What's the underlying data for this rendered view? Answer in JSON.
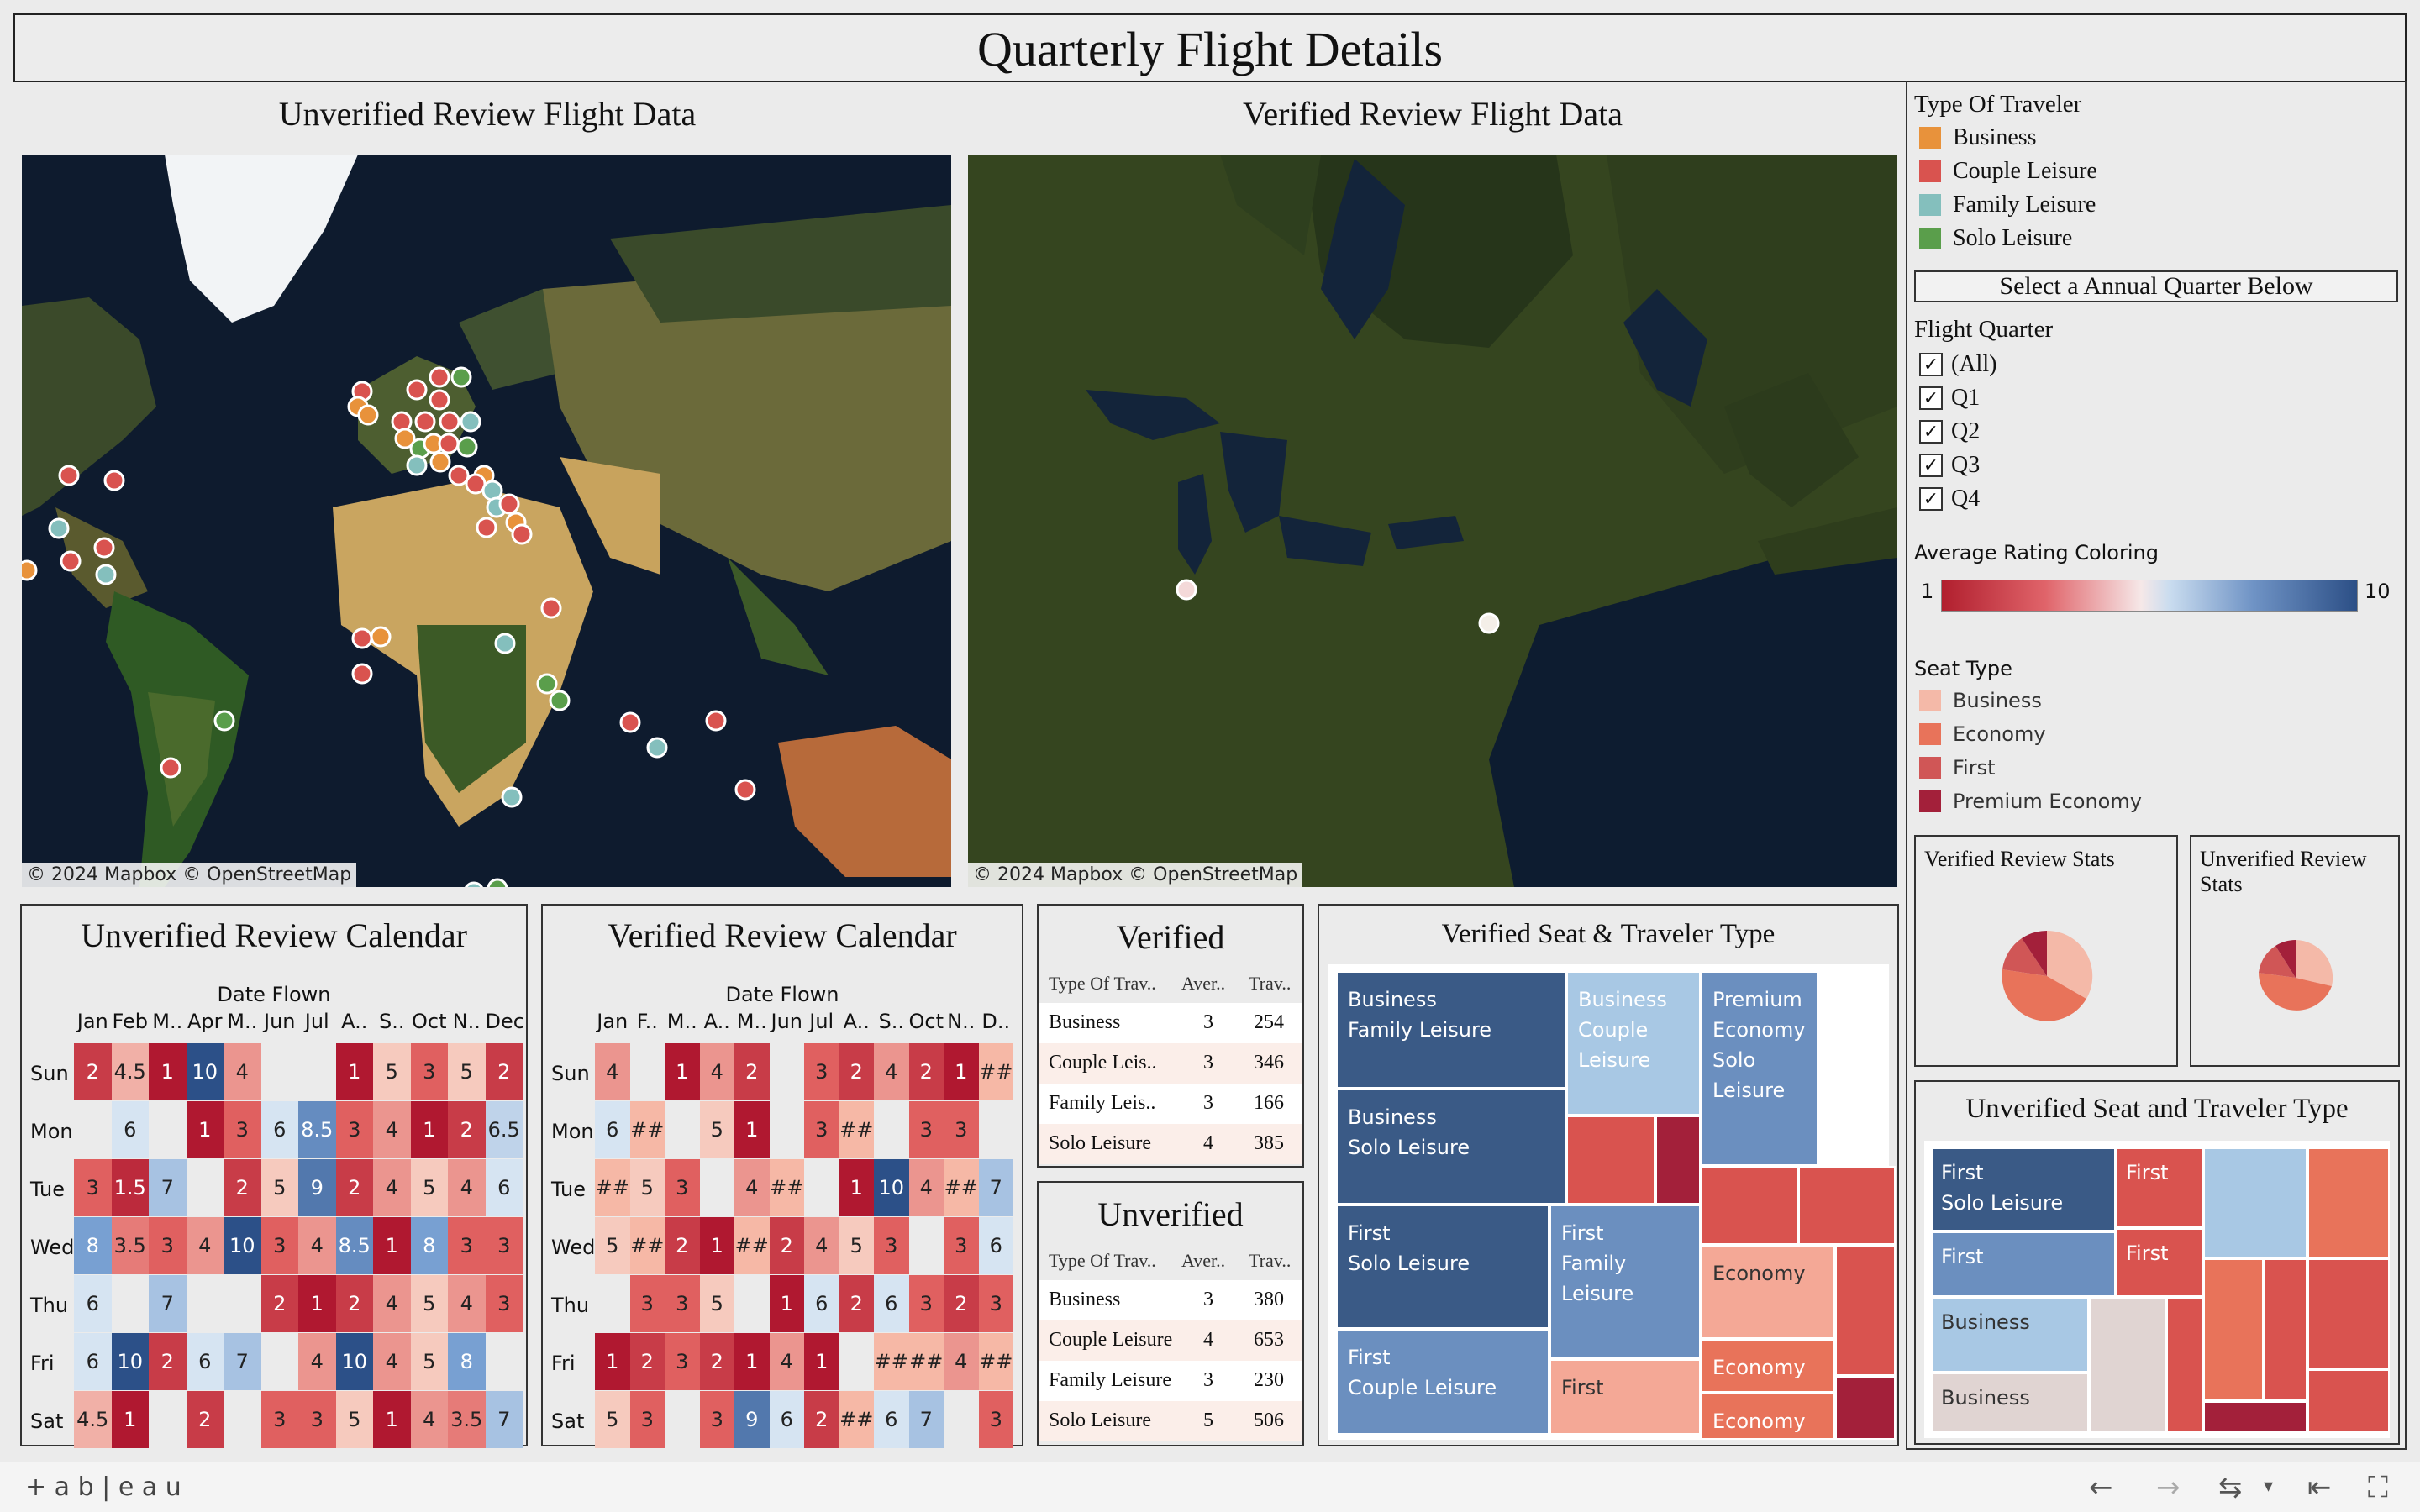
{
  "title": "Quarterly Flight Details",
  "maps": {
    "unverified_title": "Unverified Review Flight Data",
    "verified_title": "Verified Review Flight Data",
    "attribution": "© 2024 Mapbox  © OpenStreetMap"
  },
  "legend": {
    "traveler_title": "Type Of Traveler",
    "traveler_types": [
      {
        "label": "Business",
        "color": "#e8923b"
      },
      {
        "label": "Couple Leisure",
        "color": "#d9534f"
      },
      {
        "label": "Family Leisure",
        "color": "#84bfbd"
      },
      {
        "label": "Solo Leisure",
        "color": "#5a9e4b"
      }
    ],
    "quarter_header": "Select a Annual Quarter Below",
    "quarter_title": "Flight Quarter",
    "quarters": [
      "(All)",
      "Q1",
      "Q2",
      "Q3",
      "Q4"
    ],
    "rating_title": "Average Rating Coloring",
    "rating_min": "1",
    "rating_max": "10",
    "seat_title": "Seat Type",
    "seat_types": [
      {
        "label": "Business",
        "color": "#f4b9a8"
      },
      {
        "label": "Economy",
        "color": "#e8735a"
      },
      {
        "label": "First",
        "color": "#d05656"
      },
      {
        "label": "Premium Economy",
        "color": "#a3203a"
      }
    ]
  },
  "pies": {
    "verified_title": "Verified Review Stats",
    "unverified_title": "Unverified Review Stats"
  },
  "calendars": {
    "unverified_title": "Unverified Review Calendar",
    "verified_title": "Verified Review Calendar",
    "subtitle": "Date Flown",
    "days": [
      "Sun",
      "Mon",
      "Tue",
      "Wed",
      "Thu",
      "Fri",
      "Sat"
    ],
    "unverified_months": [
      "Jan",
      "Feb",
      "M..",
      "Apr",
      "M..",
      "Jun",
      "Jul",
      "A..",
      "S..",
      "Oct",
      "N..",
      "Dec"
    ],
    "verified_months": [
      "Jan",
      "F..",
      "M..",
      "A..",
      "M..",
      "Jun",
      "Jul",
      "A..",
      "S..",
      "Oct",
      "N..",
      "D.."
    ],
    "unverified_cells": [
      [
        "2",
        "4.5",
        "1",
        "10",
        "4",
        "",
        "",
        "1",
        "5",
        "3",
        "5",
        "2"
      ],
      [
        "",
        "6",
        "",
        "1",
        "3",
        "6",
        "8.5",
        "3",
        "4",
        "1",
        "2",
        "6.5"
      ],
      [
        "3",
        "1.5",
        "7",
        "",
        "2",
        "5",
        "9",
        "2",
        "4",
        "5",
        "4",
        "6"
      ],
      [
        "8",
        "3.5",
        "3",
        "4",
        "10",
        "3",
        "4",
        "8.5",
        "1",
        "8",
        "3",
        "3"
      ],
      [
        "6",
        "",
        "7",
        "",
        "",
        "2",
        "1",
        "2",
        "4",
        "5",
        "4",
        "3"
      ],
      [
        "6",
        "10",
        "2",
        "6",
        "7",
        "",
        "4",
        "10",
        "4",
        "5",
        "8",
        ""
      ],
      [
        "4.5",
        "1",
        "",
        "2",
        "",
        "3",
        "3",
        "5",
        "1",
        "4",
        "3.5",
        "7"
      ]
    ],
    "verified_cells": [
      [
        "4",
        "",
        "1",
        "4",
        "2",
        "",
        "3",
        "2",
        "4",
        "2",
        "1",
        "##"
      ],
      [
        "6",
        "##",
        "",
        "5",
        "1",
        "",
        "3",
        "##",
        "",
        "3",
        "3",
        ""
      ],
      [
        "##",
        "5",
        "3",
        "",
        "4",
        "##",
        "",
        "1",
        "10",
        "4",
        "##",
        "7"
      ],
      [
        "5",
        "##",
        "2",
        "1",
        "##",
        "2",
        "4",
        "5",
        "3",
        "",
        "3",
        "6"
      ],
      [
        "",
        "3",
        "3",
        "5",
        "",
        "1",
        "6",
        "2",
        "6",
        "3",
        "2",
        "3"
      ],
      [
        "1",
        "2",
        "3",
        "2",
        "1",
        "4",
        "1",
        "",
        "##",
        "##",
        "4",
        "##"
      ],
      [
        "5",
        "3",
        "",
        "3",
        "9",
        "6",
        "2",
        "##",
        "6",
        "7",
        "",
        "3"
      ]
    ]
  },
  "tables": {
    "verified_title": "Verified",
    "unverified_title": "Unverified",
    "headers": [
      "Type Of Trav..",
      "Aver..",
      "Trav.."
    ],
    "verified_rows": [
      [
        "Business",
        "3",
        "254"
      ],
      [
        "Couple Leis..",
        "3",
        "346"
      ],
      [
        "Family Leis..",
        "3",
        "166"
      ],
      [
        "Solo Leisure",
        "4",
        "385"
      ]
    ],
    "unverified_rows": [
      [
        "Business",
        "3",
        "380"
      ],
      [
        "Couple Leisure",
        "4",
        "653"
      ],
      [
        "Family Leisure",
        "3",
        "230"
      ],
      [
        "Solo Leisure",
        "5",
        "506"
      ]
    ]
  },
  "treemaps": {
    "verified_title": "Verified Seat & Traveler Type",
    "unverified_title": "Unverified Seat and Traveler Type",
    "verified_cells": [
      {
        "l1": "Business",
        "l2": "Family Leisure"
      },
      {
        "l1": "Business",
        "l2": "Couple",
        "l3": "Leisure"
      },
      {
        "l1": "Premium",
        "l2": "Economy",
        "l3": "Solo",
        "l4": "Leisure"
      },
      {
        "l1": "Business",
        "l2": "Solo Leisure"
      },
      {
        "l1": "First",
        "l2": "Solo Leisure"
      },
      {
        "l1": "First",
        "l2": "Family",
        "l3": "Leisure"
      },
      {
        "l1": "Economy"
      },
      {
        "l1": "First",
        "l2": "Couple Leisure"
      },
      {
        "l1": "First"
      },
      {
        "l1": "Economy"
      },
      {
        "l1": "Economy"
      }
    ],
    "unverified_cells": [
      {
        "l1": "First",
        "l2": "Solo Leisure"
      },
      {
        "l1": "First"
      },
      {
        "l1": "First"
      },
      {
        "l1": "First"
      },
      {
        "l1": "Business"
      },
      {
        "l1": "Business"
      }
    ]
  },
  "footer": {
    "brand": "+ a b | e a u"
  }
}
